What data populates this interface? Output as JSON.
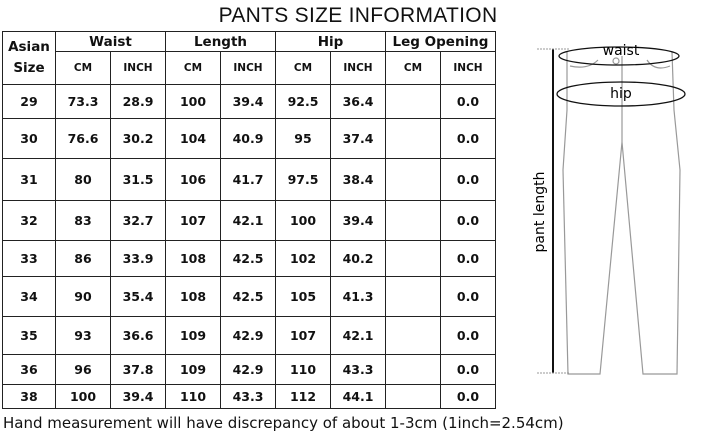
{
  "title": "PANTS SIZE INFORMATION",
  "headers": {
    "size": "Asian Size",
    "groups": [
      "Waist",
      "Length",
      "Hip",
      "Leg Opening"
    ],
    "units": [
      "CM",
      "INCH",
      "CM",
      "INCH",
      "CM",
      "INCH",
      "CM",
      "INCH"
    ]
  },
  "rows": [
    [
      "29",
      "73.3",
      "28.9",
      "100",
      "39.4",
      "92.5",
      "36.4",
      "",
      "0.0"
    ],
    [
      "30",
      "76.6",
      "30.2",
      "104",
      "40.9",
      "95",
      "37.4",
      "",
      "0.0"
    ],
    [
      "31",
      "80",
      "31.5",
      "106",
      "41.7",
      "97.5",
      "38.4",
      "",
      "0.0"
    ],
    [
      "32",
      "83",
      "32.7",
      "107",
      "42.1",
      "100",
      "39.4",
      "",
      "0.0"
    ],
    [
      "33",
      "86",
      "33.9",
      "108",
      "42.5",
      "102",
      "40.2",
      "",
      "0.0"
    ],
    [
      "34",
      "90",
      "35.4",
      "108",
      "42.5",
      "105",
      "41.3",
      "",
      "0.0"
    ],
    [
      "35",
      "93",
      "36.6",
      "109",
      "42.9",
      "107",
      "42.1",
      "",
      "0.0"
    ],
    [
      "36",
      "96",
      "37.8",
      "109",
      "42.9",
      "110",
      "43.3",
      "",
      "0.0"
    ],
    [
      "38",
      "100",
      "39.4",
      "110",
      "43.3",
      "112",
      "44.1",
      "",
      "0.0"
    ]
  ],
  "diagram": {
    "waist": "waist",
    "hip": "hip",
    "length": "pant length"
  },
  "footer": "Hand measurement will have discrepancy of about 1-3cm (1inch=2.54cm)"
}
